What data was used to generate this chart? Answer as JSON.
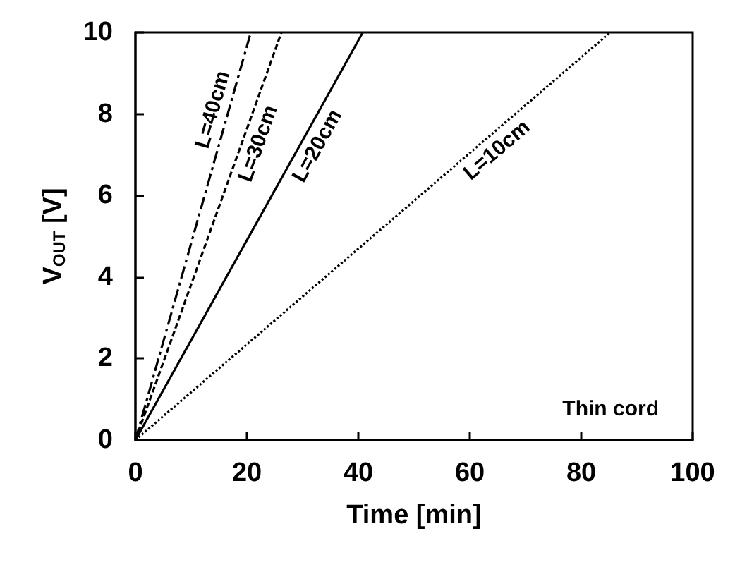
{
  "chart_data": {
    "type": "line",
    "xlabel": "Time [min]",
    "ylabel": "V$_{OUT}$ [V]",
    "xlim": [
      0,
      100
    ],
    "xticks": [
      0,
      20,
      40,
      60,
      80,
      100
    ],
    "ylim": [
      0,
      10
    ],
    "yticks": [
      0,
      2,
      4,
      6,
      8,
      10
    ],
    "grid": false,
    "legend": false,
    "marker": "none",
    "annotations": [
      "Thin cord"
    ],
    "series": [
      {
        "name": "L=40cm",
        "color": "#000000",
        "line_style": "dashed",
        "x": [
          0,
          20.7
        ],
        "values": [
          0,
          10
        ]
      },
      {
        "name": "L=30cm",
        "color": "#000000",
        "line_style": "dashed",
        "x": [
          0,
          26.2
        ],
        "values": [
          0,
          10
        ]
      },
      {
        "name": "L=20cm",
        "color": "#000000",
        "line_style": "solid",
        "x": [
          0,
          40.8
        ],
        "values": [
          0,
          10
        ]
      },
      {
        "name": "L=10cm",
        "color": "#000000",
        "line_style": "dotted",
        "x": [
          0,
          85.2
        ],
        "values": [
          0,
          10
        ]
      }
    ]
  }
}
